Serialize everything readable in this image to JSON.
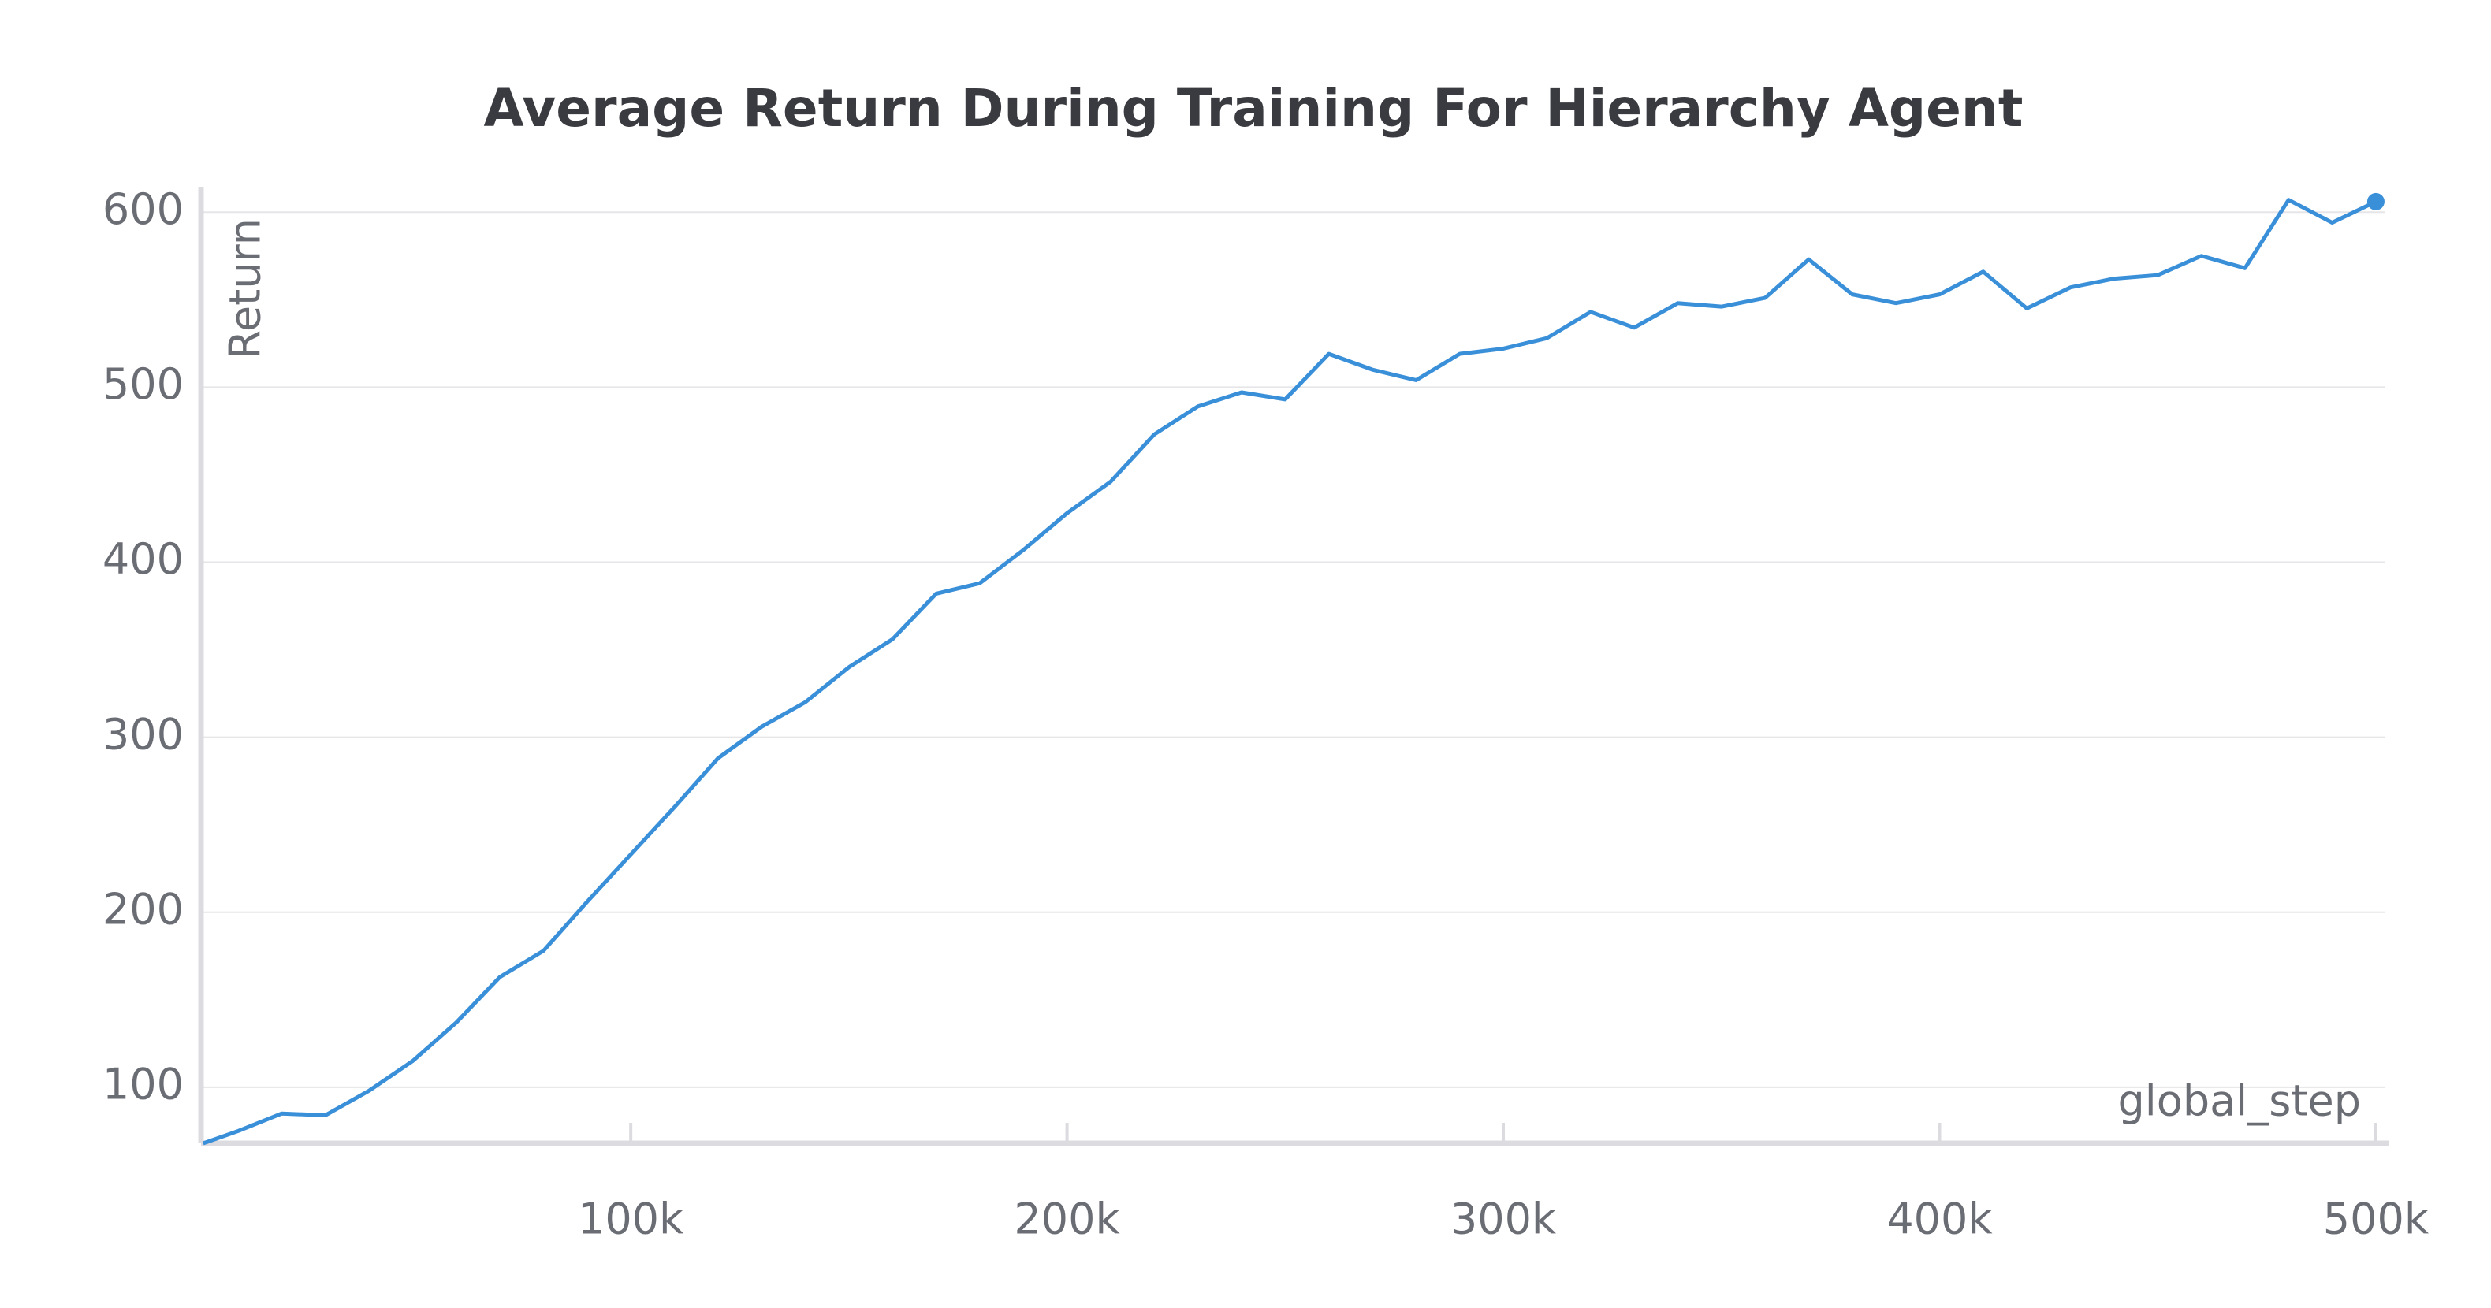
{
  "chart_data": {
    "type": "line",
    "title": "Average Return During Training For Hierarchy Agent",
    "x_label": "global_step",
    "y_label": "Return",
    "series": [
      {
        "name": "Return",
        "color": "#3a8fd9",
        "x": [
          2000,
          10000,
          20000,
          30000,
          40000,
          50000,
          60000,
          70000,
          80000,
          90000,
          100000,
          110000,
          120000,
          130000,
          140000,
          150000,
          160000,
          170000,
          180000,
          190000,
          200000,
          210000,
          220000,
          230000,
          240000,
          250000,
          260000,
          270000,
          280000,
          290000,
          300000,
          310000,
          320000,
          330000,
          340000,
          350000,
          360000,
          370000,
          380000,
          390000,
          400000,
          410000,
          420000,
          430000,
          440000,
          450000,
          460000,
          470000,
          480000,
          490000,
          500000
        ],
        "values": [
          68,
          75,
          85,
          84,
          98,
          115,
          137,
          163,
          178,
          206,
          233,
          260,
          288,
          306,
          320,
          340,
          356,
          382,
          388,
          407,
          428,
          446,
          473,
          489,
          497,
          493,
          519,
          510,
          504,
          519,
          522,
          528,
          543,
          534,
          548,
          546,
          551,
          573,
          553,
          548,
          553,
          566,
          545,
          557,
          562,
          564,
          575,
          568,
          607,
          594,
          606
        ]
      }
    ],
    "xlim": [
      1500,
      502000
    ],
    "ylim": [
      68,
      610
    ],
    "xticks": [
      {
        "value": 100000,
        "label": "100k"
      },
      {
        "value": 200000,
        "label": "200k"
      },
      {
        "value": 300000,
        "label": "300k"
      },
      {
        "value": 400000,
        "label": "400k"
      },
      {
        "value": 500000,
        "label": "500k"
      }
    ],
    "yticks": [
      100,
      200,
      300,
      400,
      500,
      600
    ],
    "grid": true
  }
}
